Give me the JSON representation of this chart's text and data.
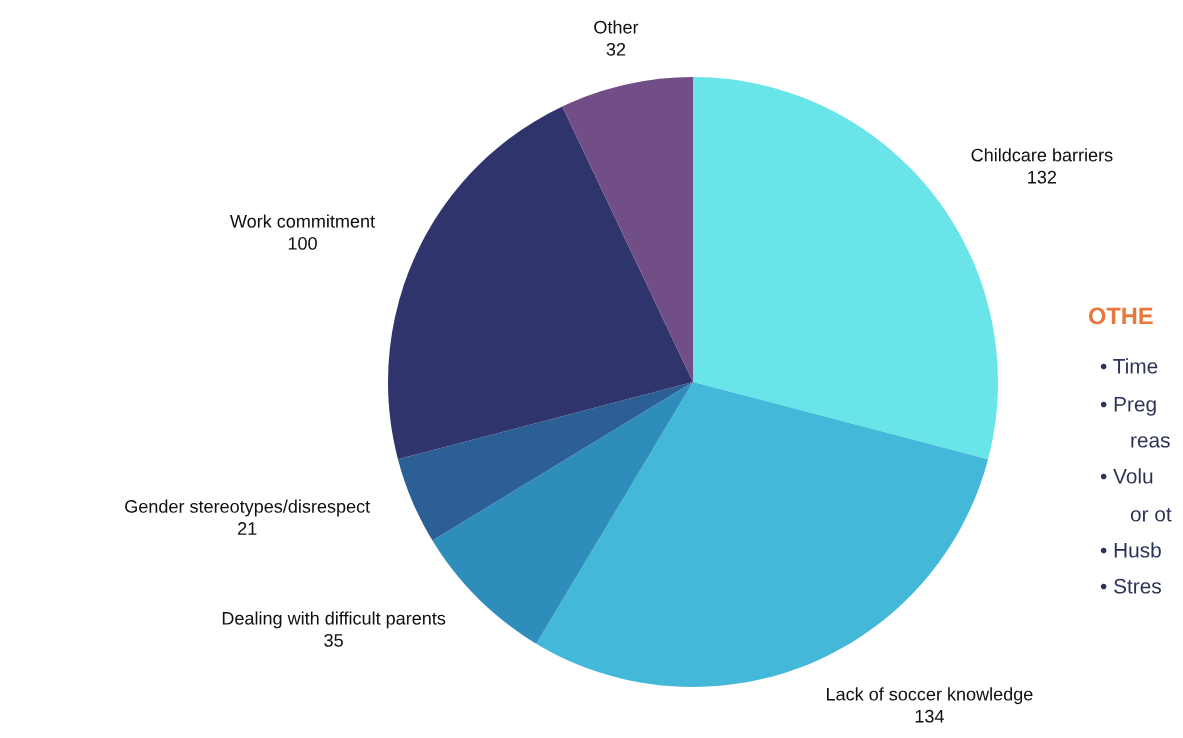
{
  "chart_data": {
    "type": "pie",
    "categories": [
      "Childcare barriers",
      "Lack of soccer knowledge",
      "Dealing with difficult parents",
      "Gender stereotypes/disrespect",
      "Work commitment",
      "Other"
    ],
    "values": [
      132,
      134,
      35,
      21,
      100,
      32
    ],
    "colors": [
      "#69e4e8",
      "#43b8d8",
      "#2e8dbb",
      "#2c5f95",
      "#30346c",
      "#724e87"
    ],
    "data_labels": true,
    "annotations": [
      "OTHE",
      "• Time",
      "• Preg",
      "reas",
      "• Volu",
      "or ot",
      "• Husb",
      "• Stres"
    ]
  }
}
